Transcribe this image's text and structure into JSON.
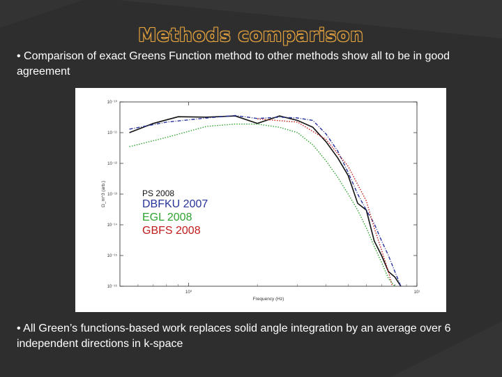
{
  "slide": {
    "title": "Methods comparison",
    "bullet1": "• Comparison of exact Greens Function method to other methods show all to be in good agreement",
    "bullet2": "•  All Green’s functions-based work replaces solid angle integration by an average over 6 independent directions in k-space"
  },
  "colors": {
    "background": "#2e2e2e",
    "title_outline": "#e8a43c",
    "text": "#ffffff"
  },
  "chart_data": {
    "type": "line",
    "xlabel": "Frequency (Hz)",
    "ylabel": "Ω_m^3 (arb.)",
    "x_scale": "log",
    "y_scale": "log",
    "xlim": [
      0.5,
      10
    ],
    "ylim": [
      1e-16,
      1e-10
    ],
    "x_ticks": [
      {
        "value": 1,
        "label": "10⁰"
      },
      {
        "value": 10,
        "label": "10¹"
      }
    ],
    "y_ticks": [
      {
        "value": 1e-10,
        "label": "10⁻¹⁰"
      },
      {
        "value": 1e-11,
        "label": "10⁻¹¹"
      },
      {
        "value": 1e-12,
        "label": "10⁻¹²"
      },
      {
        "value": 1e-13,
        "label": "10⁻¹³"
      },
      {
        "value": 1e-14,
        "label": "10⁻¹⁴"
      },
      {
        "value": 1e-15,
        "label": "10⁻¹⁵"
      },
      {
        "value": 1e-16,
        "label": "10⁻¹⁶"
      }
    ],
    "grid": false,
    "legend": {
      "placement": "center-left",
      "entries": [
        {
          "label": "PS 2008",
          "color": "#111111"
        },
        {
          "label": "DBFKU 2007",
          "color": "#27339a"
        },
        {
          "label": "EGL 2008",
          "color": "#2ea32e"
        },
        {
          "label": "GBFS 2008",
          "color": "#c11b1b"
        }
      ]
    },
    "series": [
      {
        "color": "#111111",
        "style": "solid",
        "x": [
          0.55,
          0.7,
          0.9,
          1.2,
          1.6,
          2.0,
          2.5,
          3.0,
          3.5,
          4.0,
          4.5,
          5.0,
          5.5,
          6.0,
          6.5,
          7.0,
          7.5,
          8.0,
          8.5
        ],
        "y": [
          1e-11,
          2e-11,
          3.3e-11,
          3.2e-11,
          3.5e-11,
          2e-11,
          3.5e-11,
          2.5e-11,
          1.5e-11,
          5e-12,
          1.5e-12,
          4e-13,
          5e-14,
          3e-14,
          3e-15,
          1e-15,
          3e-16,
          2e-16,
          1e-16
        ]
      },
      {
        "color": "#27339a",
        "style": "dashdot",
        "x": [
          0.55,
          0.8,
          1.2,
          1.6,
          2.0,
          2.5,
          3.0,
          3.5,
          4.0,
          4.5,
          5.0,
          5.5,
          6.0,
          6.5,
          7.0,
          7.5,
          8.0,
          8.5
        ],
        "y": [
          1.3e-11,
          2.2e-11,
          3e-11,
          3.6e-11,
          2.9e-11,
          3.2e-11,
          3e-11,
          2.5e-11,
          9e-12,
          2.5e-12,
          5e-13,
          1e-13,
          3e-14,
          1.1e-14,
          3e-15,
          1e-15,
          3e-16,
          1e-16
        ]
      },
      {
        "color": "#2ea32e",
        "style": "dotted",
        "x": [
          0.55,
          0.8,
          1.2,
          1.6,
          2.0,
          2.5,
          3.0,
          3.5,
          4.0,
          4.5,
          5.0,
          5.5,
          6.0,
          6.5,
          7.0,
          7.5,
          8.0
        ],
        "y": [
          3.5e-12,
          7e-12,
          1.6e-11,
          1.9e-11,
          1.9e-11,
          1.5e-11,
          1e-11,
          4e-12,
          1.2e-12,
          3.5e-13,
          1e-13,
          3e-14,
          8e-15,
          2e-15,
          6e-16,
          1.8e-16,
          1e-16
        ]
      },
      {
        "color": "#c11b1b",
        "style": "dotted",
        "x": [
          2.0,
          3.0,
          4.0,
          5.0,
          6.0,
          6.5,
          7.0,
          7.5,
          7.8
        ],
        "y": [
          2.8e-11,
          2.2e-11,
          6e-12,
          8e-13,
          6e-14,
          8e-15,
          1.5e-15,
          3e-16,
          1e-16
        ]
      }
    ]
  }
}
